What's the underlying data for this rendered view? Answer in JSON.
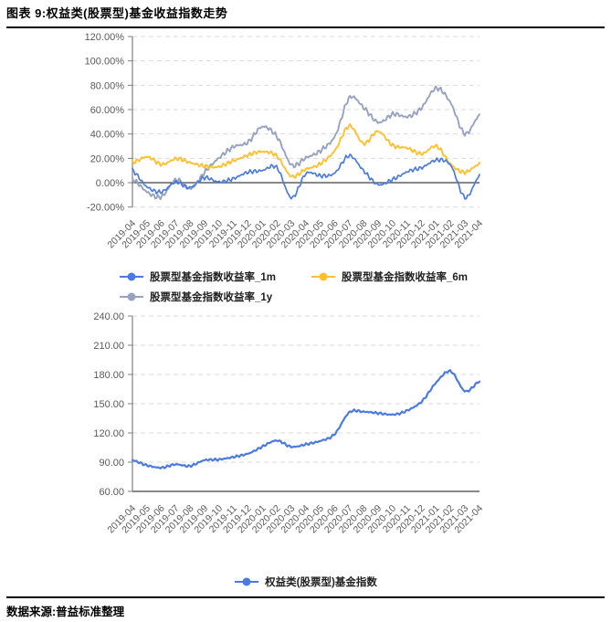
{
  "header": {
    "title": "图表 9:权益类(股票型)基金收益指数走势"
  },
  "footer": {
    "source_label": "数据来源:普益标准整理"
  },
  "colors": {
    "blue": "#4B7BE0",
    "orange": "#FFC02E",
    "gray": "#96A2BE",
    "grid": "#D9D9D9",
    "axis_line": "#7F7F7F",
    "zero_line": "#404040",
    "tick_text": "#595959",
    "rule": "#000000"
  },
  "chart_data": [
    {
      "type": "line",
      "title": "",
      "x": [
        "2019-04",
        "2019-05",
        "2019-06",
        "2019-07",
        "2019-08",
        "2019-09",
        "2019-10",
        "2019-11",
        "2019-12",
        "2020-01",
        "2020-02",
        "2020-03",
        "2020-04",
        "2020-05",
        "2020-06",
        "2020-07",
        "2020-08",
        "2020-09",
        "2020-10",
        "2020-11",
        "2020-12",
        "2021-01",
        "2021-02",
        "2021-03",
        "2021-04"
      ],
      "series": [
        {
          "name": "股票型基金指数收益率_1m",
          "color_key": "blue",
          "values": [
            10,
            -3,
            -8,
            1,
            -4,
            4,
            1,
            3,
            9,
            10,
            12,
            -12,
            7,
            6,
            8,
            22,
            10,
            -2,
            3,
            9,
            12,
            19,
            14,
            -12,
            6
          ]
        },
        {
          "name": "股票型基金指数收益率_6m",
          "color_key": "orange",
          "values": [
            17,
            21,
            15,
            20,
            16,
            14,
            13,
            18,
            23,
            25,
            22,
            5,
            11,
            16,
            26,
            47,
            32,
            42,
            31,
            28,
            24,
            30,
            15,
            9,
            15
          ]
        },
        {
          "name": "股票型基金指数收益率_1y",
          "color_key": "gray",
          "values": [
            3,
            -8,
            -11,
            2,
            -5,
            9,
            20,
            30,
            33,
            46,
            38,
            14,
            21,
            26,
            38,
            70,
            61,
            50,
            56,
            54,
            62,
            77,
            66,
            40,
            55
          ]
        }
      ],
      "ylim": [
        -20,
        120
      ],
      "ytick_values": [
        120,
        100,
        80,
        60,
        40,
        20,
        0,
        -20
      ],
      "ytick_labels": [
        "120.00%",
        "100.00%",
        "80.00%",
        "60.00%",
        "40.00%",
        "20.00%",
        "0.00%",
        "-20.00%"
      ],
      "zero_line": true,
      "grid": "dashed",
      "legend_position": "bottom"
    },
    {
      "type": "line",
      "title": "",
      "x": [
        "2019-04",
        "2019-05",
        "2019-06",
        "2019-07",
        "2019-08",
        "2019-09",
        "2019-10",
        "2019-11",
        "2019-12",
        "2020-01",
        "2020-02",
        "2020-03",
        "2020-04",
        "2020-05",
        "2020-06",
        "2020-07",
        "2020-08",
        "2020-09",
        "2020-10",
        "2020-11",
        "2020-12",
        "2021-01",
        "2021-02",
        "2021-03",
        "2021-04"
      ],
      "series": [
        {
          "name": "权益类(股票型)基金指数",
          "color_key": "blue",
          "values": [
            92,
            87,
            84,
            88,
            86,
            92,
            93,
            95,
            99,
            106,
            112,
            106,
            108,
            112,
            119,
            141,
            142,
            140,
            139,
            143,
            152,
            172,
            183,
            163,
            173
          ]
        }
      ],
      "ylim": [
        60,
        240
      ],
      "ytick_values": [
        240,
        210,
        180,
        150,
        120,
        90,
        60
      ],
      "ytick_labels": [
        "240.00",
        "210.00",
        "180.00",
        "150.00",
        "120.00",
        "90.00",
        "60.00"
      ],
      "zero_line": false,
      "grid": "dashed",
      "legend_position": "bottom"
    }
  ]
}
